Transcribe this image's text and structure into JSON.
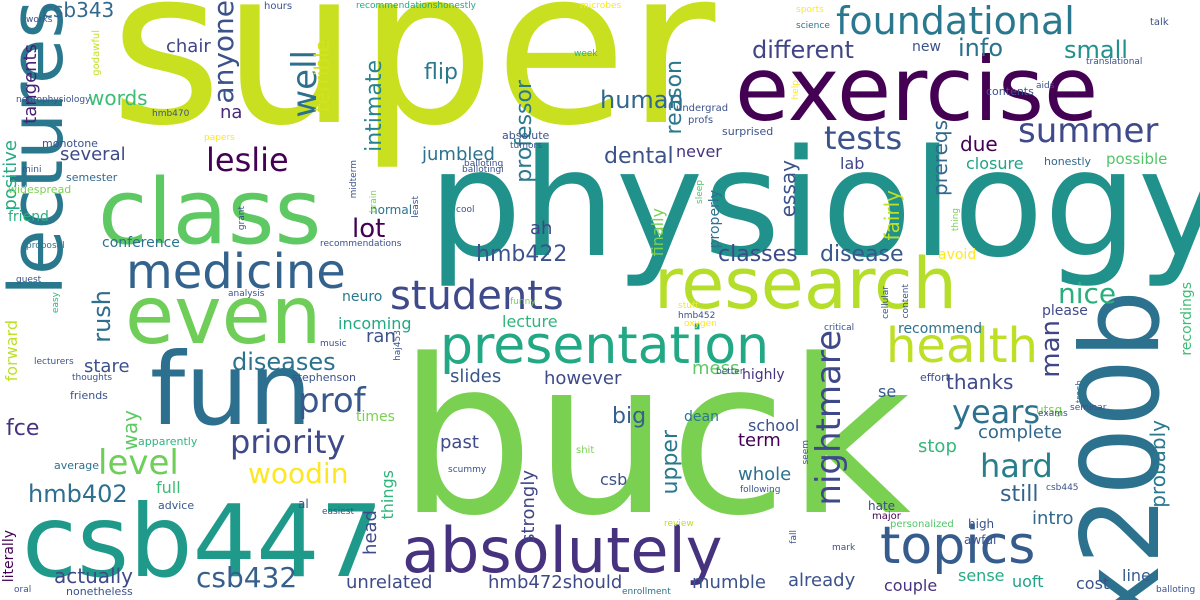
{
  "words": [
    {
      "text": "super",
      "color": "#c8e020"
    },
    {
      "text": "buck",
      "color": "#7ad151"
    },
    {
      "text": "physiology",
      "color": "#21918c"
    },
    {
      "text": "exercise",
      "color": "#440154"
    },
    {
      "text": "csb447",
      "color": "#1f9a8a"
    },
    {
      "text": "lectures",
      "color": "#2a788e"
    },
    {
      "text": "research",
      "color": "#b5de2b"
    },
    {
      "text": "x200b",
      "color": "#2c728e"
    },
    {
      "text": "class",
      "color": "#5ec962"
    },
    {
      "text": "fun",
      "color": "#2d6f8e"
    },
    {
      "text": "even",
      "color": "#6ece58"
    },
    {
      "text": "presentation",
      "color": "#22a884"
    },
    {
      "text": "absolutely",
      "color": "#46327e"
    },
    {
      "text": "topics",
      "color": "#365c8d"
    },
    {
      "text": "foundational",
      "color": "#2a788e"
    },
    {
      "text": "medicine",
      "color": "#33638d"
    },
    {
      "text": "health",
      "color": "#bddf26"
    },
    {
      "text": "students",
      "color": "#3e4a89"
    },
    {
      "text": "summer",
      "color": "#3e4a89"
    },
    {
      "text": "leslie",
      "color": "#440154"
    },
    {
      "text": "tests",
      "color": "#3b528b"
    },
    {
      "text": "priority",
      "color": "#3e4989"
    },
    {
      "text": "woodin",
      "color": "#fde725"
    },
    {
      "text": "level",
      "color": "#6ece58"
    },
    {
      "text": "prof",
      "color": "#38588c"
    },
    {
      "text": "nightmare",
      "color": "#3f4889"
    },
    {
      "text": "years",
      "color": "#2c728e"
    },
    {
      "text": "hard",
      "color": "#277f8e"
    },
    {
      "text": "csb432",
      "color": "#355f8d"
    },
    {
      "text": "hmb402",
      "color": "#2e6e8e"
    },
    {
      "text": "different",
      "color": "#414487"
    },
    {
      "text": "human",
      "color": "#31688e"
    },
    {
      "text": "diseases",
      "color": "#2c728e"
    },
    {
      "text": "csb343",
      "color": "#31688e"
    },
    {
      "text": "anyone",
      "color": "#3b528b"
    },
    {
      "text": "well",
      "color": "#2d708e"
    },
    {
      "text": "terrible",
      "color": "#d5e21a"
    },
    {
      "text": "info",
      "color": "#2c728e"
    },
    {
      "text": "small",
      "color": "#21918c"
    },
    {
      "text": "nice",
      "color": "#29af7f"
    },
    {
      "text": "man",
      "color": "#404688"
    },
    {
      "text": "classes",
      "color": "#3e4a89"
    },
    {
      "text": "disease",
      "color": "#38588c"
    },
    {
      "text": "hmb422",
      "color": "#3b528b"
    },
    {
      "text": "lot",
      "color": "#440154"
    },
    {
      "text": "dental",
      "color": "#3b528b"
    },
    {
      "text": "professor",
      "color": "#2a788e"
    },
    {
      "text": "reason",
      "color": "#2a788e"
    },
    {
      "text": "intimate",
      "color": "#26828e"
    },
    {
      "text": "flip",
      "color": "#2a788e"
    },
    {
      "text": "words",
      "color": "#3dbc74"
    },
    {
      "text": "chair",
      "color": "#414487"
    },
    {
      "text": "na",
      "color": "#482878"
    },
    {
      "text": "several",
      "color": "#3e4a89"
    },
    {
      "text": "positive",
      "color": "#25ab82"
    },
    {
      "text": "tangents",
      "color": "#482173"
    },
    {
      "text": "jumbled",
      "color": "#2c728e"
    },
    {
      "text": "ah",
      "color": "#404588"
    },
    {
      "text": "due",
      "color": "#440154"
    },
    {
      "text": "prereqs",
      "color": "#31688e"
    },
    {
      "text": "fairly",
      "color": "#bddf26"
    },
    {
      "text": "essay",
      "color": "#3b528b"
    },
    {
      "text": "lab",
      "color": "#404688"
    },
    {
      "text": "never",
      "color": "#46337f"
    },
    {
      "text": "closure",
      "color": "#20a386"
    },
    {
      "text": "possible",
      "color": "#52c569"
    },
    {
      "text": "honestly",
      "color": "#31688e"
    },
    {
      "text": "new",
      "color": "#3b528b"
    },
    {
      "text": "conference",
      "color": "#2c728e"
    },
    {
      "text": "friend",
      "color": "#29af7f"
    },
    {
      "text": "rush",
      "color": "#2e6e8e"
    },
    {
      "text": "incoming",
      "color": "#22a884"
    },
    {
      "text": "lecture",
      "color": "#2fb47c"
    },
    {
      "text": "avoid",
      "color": "#fde725"
    },
    {
      "text": "please",
      "color": "#3e4a89"
    },
    {
      "text": "recommend",
      "color": "#2c728e"
    },
    {
      "text": "neuro",
      "color": "#2a788e"
    },
    {
      "text": "ran",
      "color": "#3b528b"
    },
    {
      "text": "stare",
      "color": "#3b528b"
    },
    {
      "text": "slides",
      "color": "#38588c"
    },
    {
      "text": "however",
      "color": "#3e4a89"
    },
    {
      "text": "mess",
      "color": "#5ec962"
    },
    {
      "text": "highly",
      "color": "#46337f"
    },
    {
      "text": "thanks",
      "color": "#3e4a89"
    },
    {
      "text": "se",
      "color": "#38588c"
    },
    {
      "text": "way",
      "color": "#5ec962"
    },
    {
      "text": "big",
      "color": "#355f8d"
    },
    {
      "text": "past",
      "color": "#3e4a89"
    },
    {
      "text": "upper",
      "color": "#2a788e"
    },
    {
      "text": "term",
      "color": "#440154"
    },
    {
      "text": "dean",
      "color": "#2a788e"
    },
    {
      "text": "school",
      "color": "#3b528b"
    },
    {
      "text": "whole",
      "color": "#2c728e"
    },
    {
      "text": "stop",
      "color": "#35b779"
    },
    {
      "text": "complete",
      "color": "#31688e"
    },
    {
      "text": "probably",
      "color": "#2a788e"
    },
    {
      "text": "still",
      "color": "#33638d"
    },
    {
      "text": "intro",
      "color": "#31688e"
    },
    {
      "text": "fce",
      "color": "#46327e"
    },
    {
      "text": "forward",
      "color": "#bddf26"
    },
    {
      "text": "full",
      "color": "#3dbc74"
    },
    {
      "text": "actually",
      "color": "#3e4a89"
    },
    {
      "text": "strongly",
      "color": "#404588"
    },
    {
      "text": "csb",
      "color": "#3b528b"
    },
    {
      "text": "head",
      "color": "#3e4989"
    },
    {
      "text": "things",
      "color": "#2fb47c"
    },
    {
      "text": "unrelated",
      "color": "#3e4a89"
    },
    {
      "text": "hmb472should",
      "color": "#3e4989"
    },
    {
      "text": "mumble",
      "color": "#3b528b"
    },
    {
      "text": "already",
      "color": "#3b528b"
    },
    {
      "text": "couple",
      "color": "#46327e"
    },
    {
      "text": "sense",
      "color": "#25ab82"
    },
    {
      "text": "uoft",
      "color": "#20a386"
    },
    {
      "text": "cost",
      "color": "#3b528b"
    },
    {
      "text": "line",
      "color": "#365c8d"
    },
    {
      "text": "monotone",
      "color": "#3b528b"
    },
    {
      "text": "semester",
      "color": "#31688e"
    },
    {
      "text": "widespread",
      "color": "#7ad151"
    },
    {
      "text": "stephenson",
      "color": "#3b528b"
    },
    {
      "text": "times",
      "color": "#7ad151"
    },
    {
      "text": "normal",
      "color": "#2c728e"
    },
    {
      "text": "literally",
      "color": "#440154"
    },
    {
      "text": "nonetheless",
      "color": "#3b528b"
    },
    {
      "text": "recordings",
      "color": "#3dbc74"
    },
    {
      "text": "contents",
      "color": "#3b528b"
    },
    {
      "text": "average",
      "color": "#2c728e"
    },
    {
      "text": "apparently",
      "color": "#2fb47c"
    },
    {
      "text": "friends",
      "color": "#3b528b"
    },
    {
      "text": "advice",
      "color": "#38588c"
    },
    {
      "text": "al",
      "color": "#3b528b"
    },
    {
      "text": "easiest",
      "color": "#3b528b"
    },
    {
      "text": "awful",
      "color": "#3b528b"
    },
    {
      "text": "high",
      "color": "#3b528b"
    },
    {
      "text": "personalized",
      "color": "#52c569"
    },
    {
      "text": "major",
      "color": "#440154"
    },
    {
      "text": "hate",
      "color": "#3e4a89"
    },
    {
      "text": "effort",
      "color": "#3e4a89"
    },
    {
      "text": "utsg",
      "color": "#7ad151"
    },
    {
      "text": "surprised",
      "color": "#3b528b"
    },
    {
      "text": "absolute",
      "color": "#3b528b"
    },
    {
      "text": "profs",
      "color": "#3b528b"
    },
    {
      "text": "undergrad",
      "color": "#3b528b"
    },
    {
      "text": "finally",
      "color": "#7ad151"
    },
    {
      "text": "properly",
      "color": "#2c728e"
    },
    {
      "text": "hmb470",
      "color": "#3b528b"
    },
    {
      "text": "works",
      "color": "#3b528b"
    },
    {
      "text": "neurophysiology",
      "color": "#3b528b"
    },
    {
      "text": "godawful",
      "color": "#c8e020"
    },
    {
      "text": "hours",
      "color": "#3b528b"
    },
    {
      "text": "recommendationshonestly",
      "color": "#22a884"
    },
    {
      "text": "microbes",
      "color": "#fde725"
    },
    {
      "text": "sports",
      "color": "#fde725"
    },
    {
      "text": "science",
      "color": "#2c728e"
    },
    {
      "text": "talk",
      "color": "#3b528b"
    },
    {
      "text": "translational",
      "color": "#3b528b"
    },
    {
      "text": "aids",
      "color": "#3b528b"
    },
    {
      "text": "week",
      "color": "#2fb47c"
    },
    {
      "text": "papers",
      "color": "#fde725"
    },
    {
      "text": "tumors",
      "color": "#3b528b"
    },
    {
      "text": "balloting",
      "color": "#3b528b"
    },
    {
      "text": "midterm",
      "color": "#3b528b"
    },
    {
      "text": "brain",
      "color": "#7ad151"
    },
    {
      "text": "grant",
      "color": "#3b528b"
    },
    {
      "text": "cool",
      "color": "#3b528b"
    },
    {
      "text": "sleep",
      "color": "#52c569"
    },
    {
      "text": "thing",
      "color": "#7ad151"
    },
    {
      "text": "help",
      "color": "#fde725"
    },
    {
      "text": "mini",
      "color": "#3b528b"
    },
    {
      "text": "proposal",
      "color": "#2c728e"
    },
    {
      "text": "recommendations",
      "color": "#3b528b"
    },
    {
      "text": "least",
      "color": "#3b528b"
    },
    {
      "text": "funny",
      "color": "#7ad151"
    },
    {
      "text": "stuff",
      "color": "#fde725"
    },
    {
      "text": "hmb452",
      "color": "#3b528b"
    },
    {
      "text": "oxygen",
      "color": "#fde725"
    },
    {
      "text": "critical",
      "color": "#3b528b"
    },
    {
      "text": "cellular",
      "color": "#3b528b"
    },
    {
      "text": "content",
      "color": "#3b528b"
    },
    {
      "text": "guest",
      "color": "#3b528b"
    },
    {
      "text": "easy",
      "color": "#2fb47c"
    },
    {
      "text": "analysis",
      "color": "#3b528b"
    },
    {
      "text": "music",
      "color": "#3b528b"
    },
    {
      "text": "haj453",
      "color": "#3b528b"
    },
    {
      "text": "lecturers",
      "color": "#3b528b"
    },
    {
      "text": "thoughts",
      "color": "#3b528b"
    },
    {
      "text": "better",
      "color": "#3b528b"
    },
    {
      "text": "exams",
      "color": "#3b528b"
    },
    {
      "text": "seminar",
      "color": "#3b528b"
    },
    {
      "text": "trash",
      "color": "#2c728e"
    },
    {
      "text": "shit",
      "color": "#7ad151"
    },
    {
      "text": "seem",
      "color": "#3b528b"
    },
    {
      "text": "following",
      "color": "#3b528b"
    },
    {
      "text": "csb445",
      "color": "#3b528b"
    },
    {
      "text": "review",
      "color": "#bddf26"
    },
    {
      "text": "fall",
      "color": "#3b528b"
    },
    {
      "text": "mark",
      "color": "#3b528b"
    },
    {
      "text": "enrollment",
      "color": "#2c728e"
    },
    {
      "text": "oral",
      "color": "#3b528b"
    },
    {
      "text": "balloting",
      "color": "#3b528b"
    },
    {
      "text": "scummy",
      "color": "#3b528b"
    },
    {
      "text": "ballotingi",
      "color": "#3b528b"
    }
  ]
}
